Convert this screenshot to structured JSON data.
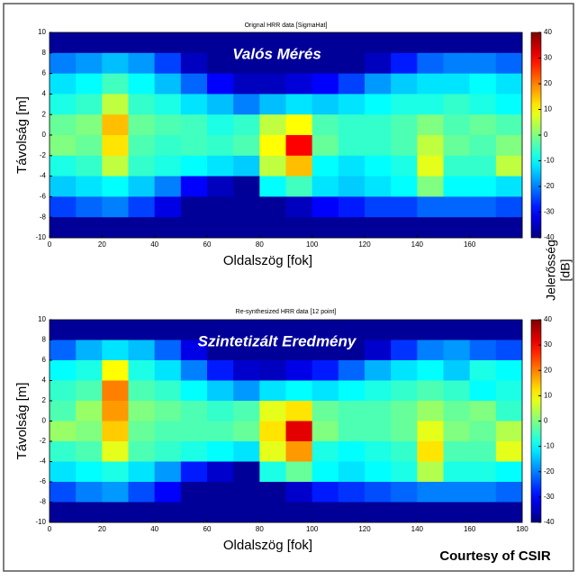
{
  "chart_data": [
    {
      "type": "heatmap",
      "title": "Orignal HRR data [SigmaHat]",
      "annotation": "Valós Mérés",
      "x_label": "Oldalszög [fok]",
      "y_label": "Távolság [m]",
      "xbins": [
        0,
        10,
        20,
        30,
        40,
        50,
        60,
        70,
        80,
        90,
        100,
        110,
        120,
        130,
        140,
        150,
        160,
        170,
        180
      ],
      "ybins": [
        10,
        8,
        6,
        4,
        2,
        0,
        -2,
        -4,
        -6,
        -8,
        -10
      ],
      "values": [
        [
          -38,
          -38,
          -38,
          -38,
          -38,
          -38,
          -38,
          -38,
          -38,
          -38,
          -38,
          -38,
          -38,
          -38,
          -38,
          -38,
          -38,
          -38
        ],
        [
          -20,
          -18,
          -15,
          -18,
          -25,
          -35,
          -38,
          -38,
          -38,
          -38,
          -38,
          -38,
          -35,
          -28,
          -22,
          -20,
          -20,
          -22
        ],
        [
          -12,
          -10,
          -5,
          -10,
          -15,
          -22,
          -30,
          -35,
          -35,
          -33,
          -30,
          -25,
          -18,
          -14,
          -12,
          -12,
          -10,
          -12
        ],
        [
          -8,
          -6,
          5,
          -6,
          -8,
          -12,
          -15,
          -20,
          -15,
          -12,
          -14,
          -12,
          -10,
          -8,
          -8,
          -6,
          -8,
          -10
        ],
        [
          -2,
          0,
          15,
          -2,
          -4,
          -5,
          -8,
          -6,
          5,
          10,
          -4,
          -6,
          -6,
          -4,
          0,
          -4,
          -2,
          -4
        ],
        [
          0,
          -2,
          12,
          -4,
          -6,
          -5,
          -6,
          -4,
          10,
          30,
          -2,
          -6,
          -6,
          -4,
          5,
          -2,
          -4,
          0
        ],
        [
          -8,
          -6,
          5,
          -6,
          -8,
          -10,
          -12,
          -14,
          5,
          15,
          -10,
          -12,
          -10,
          -8,
          8,
          -6,
          -6,
          5
        ],
        [
          -14,
          -12,
          -10,
          -14,
          -20,
          -30,
          -35,
          -38,
          -10,
          -5,
          -12,
          -14,
          -12,
          -10,
          0,
          -10,
          -10,
          -12
        ],
        [
          -25,
          -22,
          -20,
          -25,
          -32,
          -38,
          -38,
          -38,
          -38,
          -35,
          -30,
          -28,
          -25,
          -25,
          -22,
          -22,
          -22,
          -24
        ],
        [
          -38,
          -38,
          -38,
          -38,
          -38,
          -38,
          -38,
          -38,
          -38,
          -38,
          -38,
          -38,
          -38,
          -38,
          -38,
          -38,
          -38,
          -38
        ]
      ],
      "xlim": [
        0,
        180
      ],
      "xticks": [
        0,
        20,
        40,
        60,
        80,
        100,
        120,
        140,
        160
      ],
      "ylim": [
        -10,
        10
      ],
      "yticks": [
        -10,
        -8,
        -6,
        -4,
        -2,
        0,
        2,
        4,
        6,
        8,
        10
      ],
      "clim": [
        -40,
        40
      ],
      "cticks": [
        -40,
        -30,
        -20,
        -10,
        0,
        10,
        20,
        30,
        40
      ]
    },
    {
      "type": "heatmap",
      "title": "Re-synthesized HRR data [12 point]",
      "annotation": "Szintetizált Eredmény",
      "x_label": "Oldalszög [fok]",
      "y_label": "Távolság [m]",
      "xbins": [
        0,
        10,
        20,
        30,
        40,
        50,
        60,
        70,
        80,
        90,
        100,
        110,
        120,
        130,
        140,
        150,
        160,
        170,
        180
      ],
      "ybins": [
        10,
        8,
        6,
        4,
        2,
        0,
        -2,
        -4,
        -6,
        -8,
        -10
      ],
      "values": [
        [
          -38,
          -38,
          -38,
          -38,
          -38,
          -38,
          -38,
          -38,
          -38,
          -38,
          -38,
          -38,
          -38,
          -38,
          -38,
          -38,
          -38,
          -38
        ],
        [
          -22,
          -16,
          -12,
          -15,
          -22,
          -32,
          -38,
          -38,
          -38,
          -38,
          -38,
          -38,
          -34,
          -26,
          -20,
          -18,
          -22,
          -24
        ],
        [
          -10,
          -8,
          10,
          -8,
          -12,
          -20,
          -28,
          -34,
          -35,
          -32,
          -28,
          -22,
          -16,
          -12,
          -10,
          -14,
          -8,
          -10
        ],
        [
          -6,
          -4,
          20,
          -4,
          -6,
          -10,
          -14,
          -18,
          -12,
          -10,
          -12,
          -10,
          -8,
          -6,
          -4,
          -6,
          -10,
          -8
        ],
        [
          -4,
          2,
          18,
          0,
          -2,
          -4,
          -6,
          -4,
          8,
          12,
          -2,
          -4,
          -4,
          -2,
          2,
          -2,
          0,
          -6
        ],
        [
          2,
          0,
          14,
          -2,
          -4,
          -4,
          -4,
          -2,
          12,
          32,
          0,
          -4,
          -4,
          -2,
          8,
          0,
          -2,
          4
        ],
        [
          -6,
          -4,
          8,
          -4,
          -6,
          -8,
          -10,
          -12,
          8,
          18,
          -8,
          -10,
          -8,
          -6,
          12,
          -4,
          -4,
          8
        ],
        [
          -12,
          -10,
          -8,
          -12,
          -18,
          -28,
          -34,
          -38,
          -8,
          -2,
          -10,
          -12,
          -10,
          -8,
          4,
          -8,
          -8,
          -10
        ],
        [
          -24,
          -20,
          -18,
          -24,
          -30,
          -38,
          -38,
          -38,
          -38,
          -34,
          -28,
          -26,
          -24,
          -22,
          -20,
          -20,
          -20,
          -22
        ],
        [
          -38,
          -38,
          -38,
          -38,
          -38,
          -38,
          -38,
          -38,
          -38,
          -38,
          -38,
          -38,
          -38,
          -38,
          -38,
          -38,
          -38,
          -38
        ]
      ],
      "xlim": [
        0,
        180
      ],
      "xticks": [
        0,
        20,
        40,
        60,
        80,
        100,
        120,
        140,
        160,
        180
      ],
      "ylim": [
        -10,
        10
      ],
      "yticks": [
        -10,
        -8,
        -6,
        -4,
        -2,
        0,
        2,
        4,
        6,
        8,
        10
      ],
      "clim": [
        -40,
        40
      ],
      "cticks": [
        -40,
        -30,
        -20,
        -10,
        0,
        10,
        20,
        30,
        40
      ]
    }
  ],
  "colorbar_label": [
    "Jelerősség",
    "[dB]"
  ],
  "credit": "Courtesy of CSIR"
}
